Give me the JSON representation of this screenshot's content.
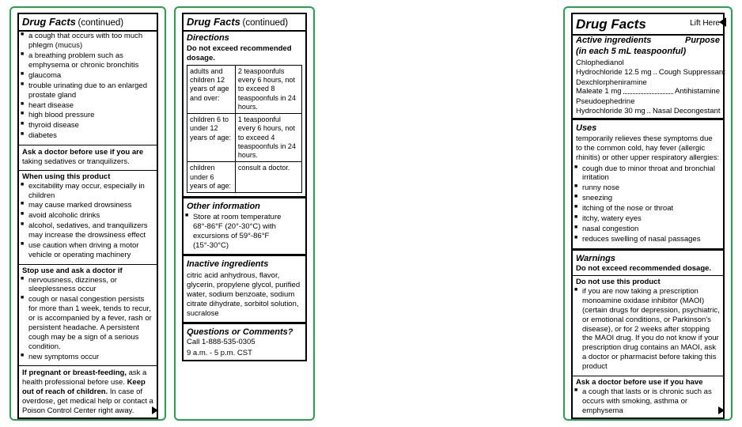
{
  "panel1": {
    "title_main": "Drug Facts",
    "title_cont": "(continued)",
    "ask_doctor_have_cont_items": [
      "a cough that occurs with too much phlegm (mucus)",
      "a breathing problem such as emphysema or chronic bronchitis",
      "glaucoma",
      "trouble urinating due to an enlarged prostate gland",
      "heart disease",
      "high blood pressure",
      "thyroid disease",
      "diabetes"
    ],
    "ask_doctor_using_head": "Ask a doctor before use if you are",
    "ask_doctor_using_tail": " taking sedatives or tranquilizers.",
    "when_using_head": "When using this product",
    "when_using_items": [
      "excitability may occur, especially in children",
      "may cause marked drowsiness",
      "avoid alcoholic drinks",
      "alcohol, sedatives, and tranquilizers may increase the drowsiness effect",
      "use caution when driving a motor vehicle or operating machinery"
    ],
    "stop_use_head": "Stop use and ask a doctor if",
    "stop_use_items": [
      "nervousness, dizziness, or sleeplessness occur",
      "cough or nasal congestion persists for more than 1 week, tends to recur, or is accompanied by a fever, rash or persistent headache. A persistent cough may be a sign of a serious condition.",
      "new symptoms occur"
    ],
    "pregnant_head": "If pregnant or breast-feeding,",
    "pregnant_tail1": " ask a health professional before use. ",
    "pregnant_head2": "Keep out of reach of children.",
    "pregnant_tail2": " In case of overdose, get medical help or contact a Poison Control Center right away."
  },
  "panel2": {
    "title_main": "Drug Facts",
    "title_cont": "(continued)",
    "directions_head": "Directions",
    "directions_sub": "Do not exceed recommended dosage.",
    "dosage": [
      {
        "who": "adults and children 12 years of age and over:",
        "dose": "2 teaspoonfuls every 6 hours, not to exceed 8 teaspoonfuls in 24 hours."
      },
      {
        "who": "children 6 to under 12 years of age:",
        "dose": "1 teaspoonful every 6 hours, not to exceed 4 teaspoonfuls in 24 hours."
      },
      {
        "who": "children under 6 years of age:",
        "dose": "consult a doctor."
      }
    ],
    "other_info_head": "Other information",
    "other_info_items": [
      "Store at room temperature 68°-86°F (20°-30°C) with excursions of 59°-86°F (15°-30°C)"
    ],
    "inactive_head": "Inactive ingredients",
    "inactive_body": "citric acid anhydrous, flavor, glycerin, propylene glycol, purified water, sodium benzoate, sodium citrate dihydrate, sorbitol solution, sucralose",
    "questions_head": "Questions or Comments?",
    "questions_body1": "Call 1-888-535-0305",
    "questions_body2": "9 a.m. - 5 p.m. CST"
  },
  "panel3": {
    "title_main": "Drug Facts",
    "lift": "Lift Here",
    "ai_head_left": "Active ingredients",
    "ai_head_right": "Purpose",
    "ai_sub": "(in each 5 mL teaspoonful)",
    "ingredients": [
      {
        "name1": "Chlophedianol",
        "name2": "Hydrochloride 12.5 mg",
        "purpose": "Cough Suppressant",
        "dotted": false
      },
      {
        "name1": "Dexchlorpheniramine",
        "name2": "Maleate 1 mg",
        "purpose": "Antihistamine",
        "dotted": true
      },
      {
        "name1": "Pseudoephedrine",
        "name2": "Hydrochloride 30 mg",
        "purpose": "Nasal Decongestant",
        "dotted": false
      }
    ],
    "uses_head": "Uses",
    "uses_intro": "temporarily relieves these symptoms due to the common cold, hay fever (allergic rhinitis) or other upper respiratory allergies:",
    "uses_items": [
      "cough due to minor throat and bronchial irritation",
      "runny nose",
      "sneezing",
      "itching of the nose or throat",
      "itchy, watery eyes",
      "nasal congestion",
      "reduces  swelling of nasal passages"
    ],
    "warnings_head": "Warnings",
    "warnings_sub": "Do not exceed recommended dosage.",
    "do_not_use_head": "Do not use this product",
    "do_not_use_items": [
      "if you are now taking a prescription monoamine oxidase inhibitor (MAOI) (certain drugs for depression, psychiatric, or emotional conditions, or Parkinson's disease), or for 2 weeks after stopping the MAOI drug.  If you do not know if your prescription drug contains an MAOI, ask a doctor or pharmacist before taking this product"
    ],
    "ask_doctor_have_head": "Ask a doctor before use if you have",
    "ask_doctor_have_items": [
      "a cough that lasts or is chronic such as occurs with smoking, asthma or emphysema"
    ]
  }
}
